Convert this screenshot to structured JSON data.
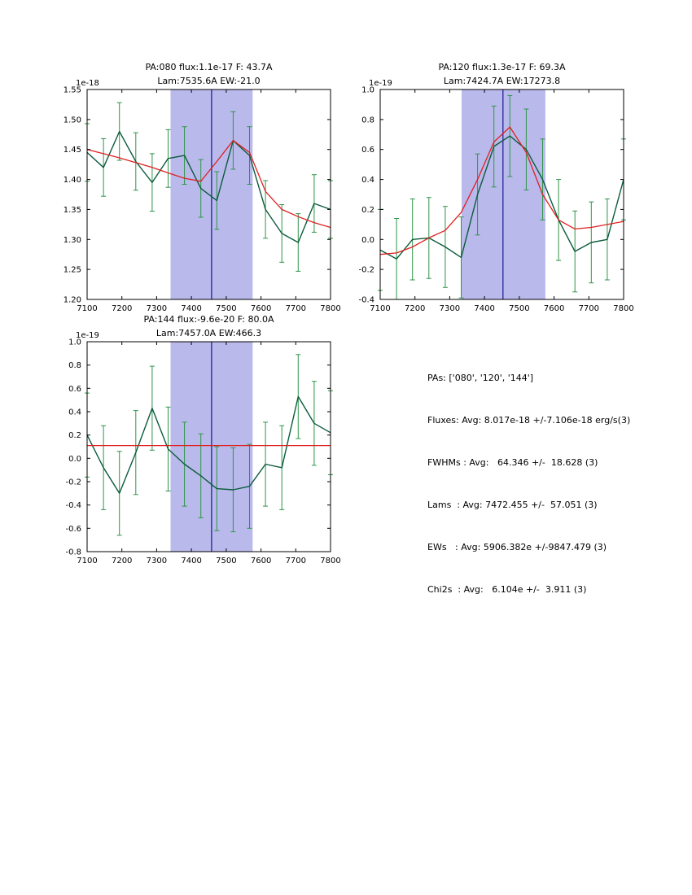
{
  "colors": {
    "band": "#b9b9ec",
    "vline": "#24249a",
    "data_line": "#0b5c3c",
    "err_bar": "#2e9448",
    "fit_line": "#e02020",
    "axis": "#000000",
    "text": "#000000"
  },
  "chart_data": [
    {
      "id": "pa080",
      "type": "line",
      "title_line1": "PA:080 flux:1.1e-17 F: 43.7A",
      "title_line2": "Lam:7535.6A EW:-21.0",
      "offset_label": "1e-18",
      "xlabel": "",
      "ylabel": "",
      "xlim": [
        7100,
        7800
      ],
      "ylim": [
        1.2,
        1.55
      ],
      "xticks": [
        7100,
        7200,
        7300,
        7400,
        7500,
        7600,
        7700,
        7800
      ],
      "ytick_values": [
        1.2,
        1.25,
        1.3,
        1.35,
        1.4,
        1.45,
        1.5,
        1.55
      ],
      "ytick_labels": [
        "1.20",
        "1.25",
        "1.30",
        "1.35",
        "1.40",
        "1.45",
        "1.50",
        "1.55"
      ],
      "band": [
        7340,
        7576
      ],
      "vline": 7458,
      "x": [
        7100,
        7147,
        7193,
        7240,
        7287,
        7333,
        7380,
        7427,
        7473,
        7520,
        7567,
        7613,
        7660,
        7707,
        7753,
        7800
      ],
      "data_values": [
        1.445,
        1.42,
        1.48,
        1.43,
        1.395,
        1.435,
        1.44,
        1.385,
        1.365,
        1.465,
        1.44,
        1.35,
        1.31,
        1.295,
        1.36,
        1.35
      ],
      "data_yerr": 0.048,
      "fit_values": [
        1.45,
        1.443,
        1.436,
        1.428,
        1.42,
        1.411,
        1.402,
        1.397,
        1.43,
        1.465,
        1.445,
        1.38,
        1.35,
        1.338,
        1.328,
        1.32
      ]
    },
    {
      "id": "pa120",
      "type": "line",
      "title_line1": "PA:120 flux:1.3e-17 F: 69.3A",
      "title_line2": "Lam:7424.7A EW:17273.8",
      "offset_label": "1e-19",
      "xlabel": "",
      "ylabel": "",
      "xlim": [
        7100,
        7800
      ],
      "ylim": [
        -0.4,
        1.0
      ],
      "xticks": [
        7100,
        7200,
        7300,
        7400,
        7500,
        7600,
        7700,
        7800
      ],
      "ytick_values": [
        -0.4,
        -0.2,
        0.0,
        0.2,
        0.4,
        0.6,
        0.8,
        1.0
      ],
      "ytick_labels": [
        "-0.4",
        "-0.2",
        "0.0",
        "0.2",
        "0.4",
        "0.6",
        "0.8",
        "1.0"
      ],
      "band": [
        7334,
        7575
      ],
      "vline": 7453,
      "x": [
        7100,
        7147,
        7193,
        7240,
        7287,
        7333,
        7380,
        7427,
        7473,
        7520,
        7567,
        7613,
        7660,
        7707,
        7753,
        7800
      ],
      "data_values": [
        -0.07,
        -0.13,
        0.0,
        0.01,
        -0.05,
        -0.12,
        0.3,
        0.62,
        0.69,
        0.6,
        0.4,
        0.13,
        -0.08,
        -0.02,
        0.0,
        0.4
      ],
      "data_yerr": 0.27,
      "fit_values": [
        -0.1,
        -0.09,
        -0.05,
        0.01,
        0.06,
        0.18,
        0.4,
        0.65,
        0.75,
        0.58,
        0.3,
        0.13,
        0.07,
        0.08,
        0.1,
        0.12
      ]
    },
    {
      "id": "pa144",
      "type": "line",
      "title_line1": "PA:144 flux:-9.6e-20 F: 80.0A",
      "title_line2": "Lam:7457.0A EW:466.3",
      "offset_label": "1e-19",
      "xlabel": "",
      "ylabel": "",
      "xlim": [
        7100,
        7800
      ],
      "ylim": [
        -0.8,
        1.0
      ],
      "xticks": [
        7100,
        7200,
        7300,
        7400,
        7500,
        7600,
        7700,
        7800
      ],
      "ytick_values": [
        -0.8,
        -0.6,
        -0.4,
        -0.2,
        0.0,
        0.2,
        0.4,
        0.6,
        0.8,
        1.0
      ],
      "ytick_labels": [
        "-0.8",
        "-0.6",
        "-0.4",
        "-0.2",
        "0.0",
        "0.2",
        "0.4",
        "0.6",
        "0.8",
        "1.0"
      ],
      "band": [
        7340,
        7576
      ],
      "vline": 7458,
      "x": [
        7100,
        7147,
        7193,
        7240,
        7287,
        7333,
        7380,
        7427,
        7473,
        7520,
        7567,
        7613,
        7660,
        7707,
        7753,
        7800
      ],
      "data_values": [
        0.2,
        -0.08,
        -0.3,
        0.05,
        0.43,
        0.08,
        -0.05,
        -0.15,
        -0.26,
        -0.27,
        -0.24,
        -0.05,
        -0.08,
        0.53,
        0.3,
        0.22
      ],
      "data_yerr": 0.36,
      "fit_values": [
        0.11,
        0.11,
        0.11,
        0.11,
        0.11,
        0.11,
        0.11,
        0.11,
        0.11,
        0.11,
        0.11,
        0.11,
        0.11,
        0.11,
        0.11,
        0.11
      ]
    }
  ],
  "stats": {
    "lines": [
      "PAs: ['080', '120', '144']",
      "Fluxes: Avg: 8.017e-18 +/-7.106e-18 erg/s(3)",
      "FWHMs : Avg:   64.346 +/-  18.628 (3)",
      "Lams  : Avg: 7472.455 +/-  57.051 (3)",
      "EWs   : Avg: 5906.382e +/-9847.479 (3)",
      "Chi2s  : Avg:   6.104e +/-  3.911 (3)"
    ]
  }
}
